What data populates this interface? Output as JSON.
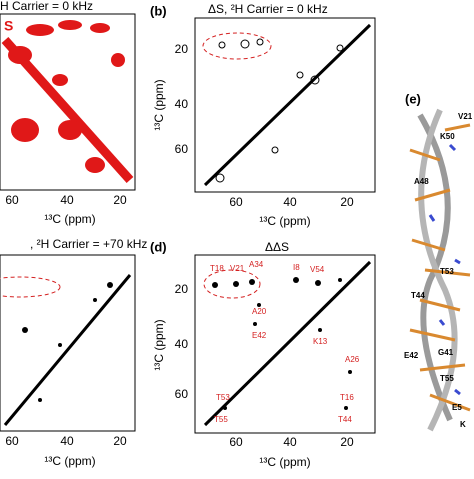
{
  "panels": [
    {
      "title": "H Carrier = 0 kHz",
      "tag": "S",
      "x_ticks": [
        "60",
        "40",
        "20"
      ],
      "x_label": "¹³C (ppm)"
    },
    {
      "label": "(b)",
      "title": "ΔS, ²H Carrier = 0 kHz",
      "x_ticks": [
        "60",
        "40",
        "20"
      ],
      "y_ticks": [
        "20",
        "40",
        "60"
      ],
      "x_label": "¹³C (ppm)",
      "y_label": "¹³C (ppm)"
    },
    {
      "title": ", ²H Carrier = +70 kHz",
      "x_ticks": [
        "60",
        "40",
        "20"
      ],
      "x_label": "¹³C (ppm)"
    },
    {
      "label": "(d)",
      "title": "ΔΔS",
      "x_ticks": [
        "60",
        "40",
        "20"
      ],
      "y_ticks": [
        "20",
        "40",
        "60"
      ],
      "x_label": "¹³C (ppm)",
      "y_label": "¹³C (ppm)",
      "annotations": [
        "T18",
        "V21",
        "A34",
        "I8",
        "V54",
        "A20",
        "E42",
        "K13",
        "A26",
        "T53",
        "T55",
        "T16",
        "T44"
      ]
    },
    {
      "label": "(e)",
      "annotations": [
        "V21",
        "K50",
        "A48",
        "T44",
        "T53",
        "E42",
        "G41",
        "T55",
        "E5",
        "K"
      ]
    }
  ]
}
